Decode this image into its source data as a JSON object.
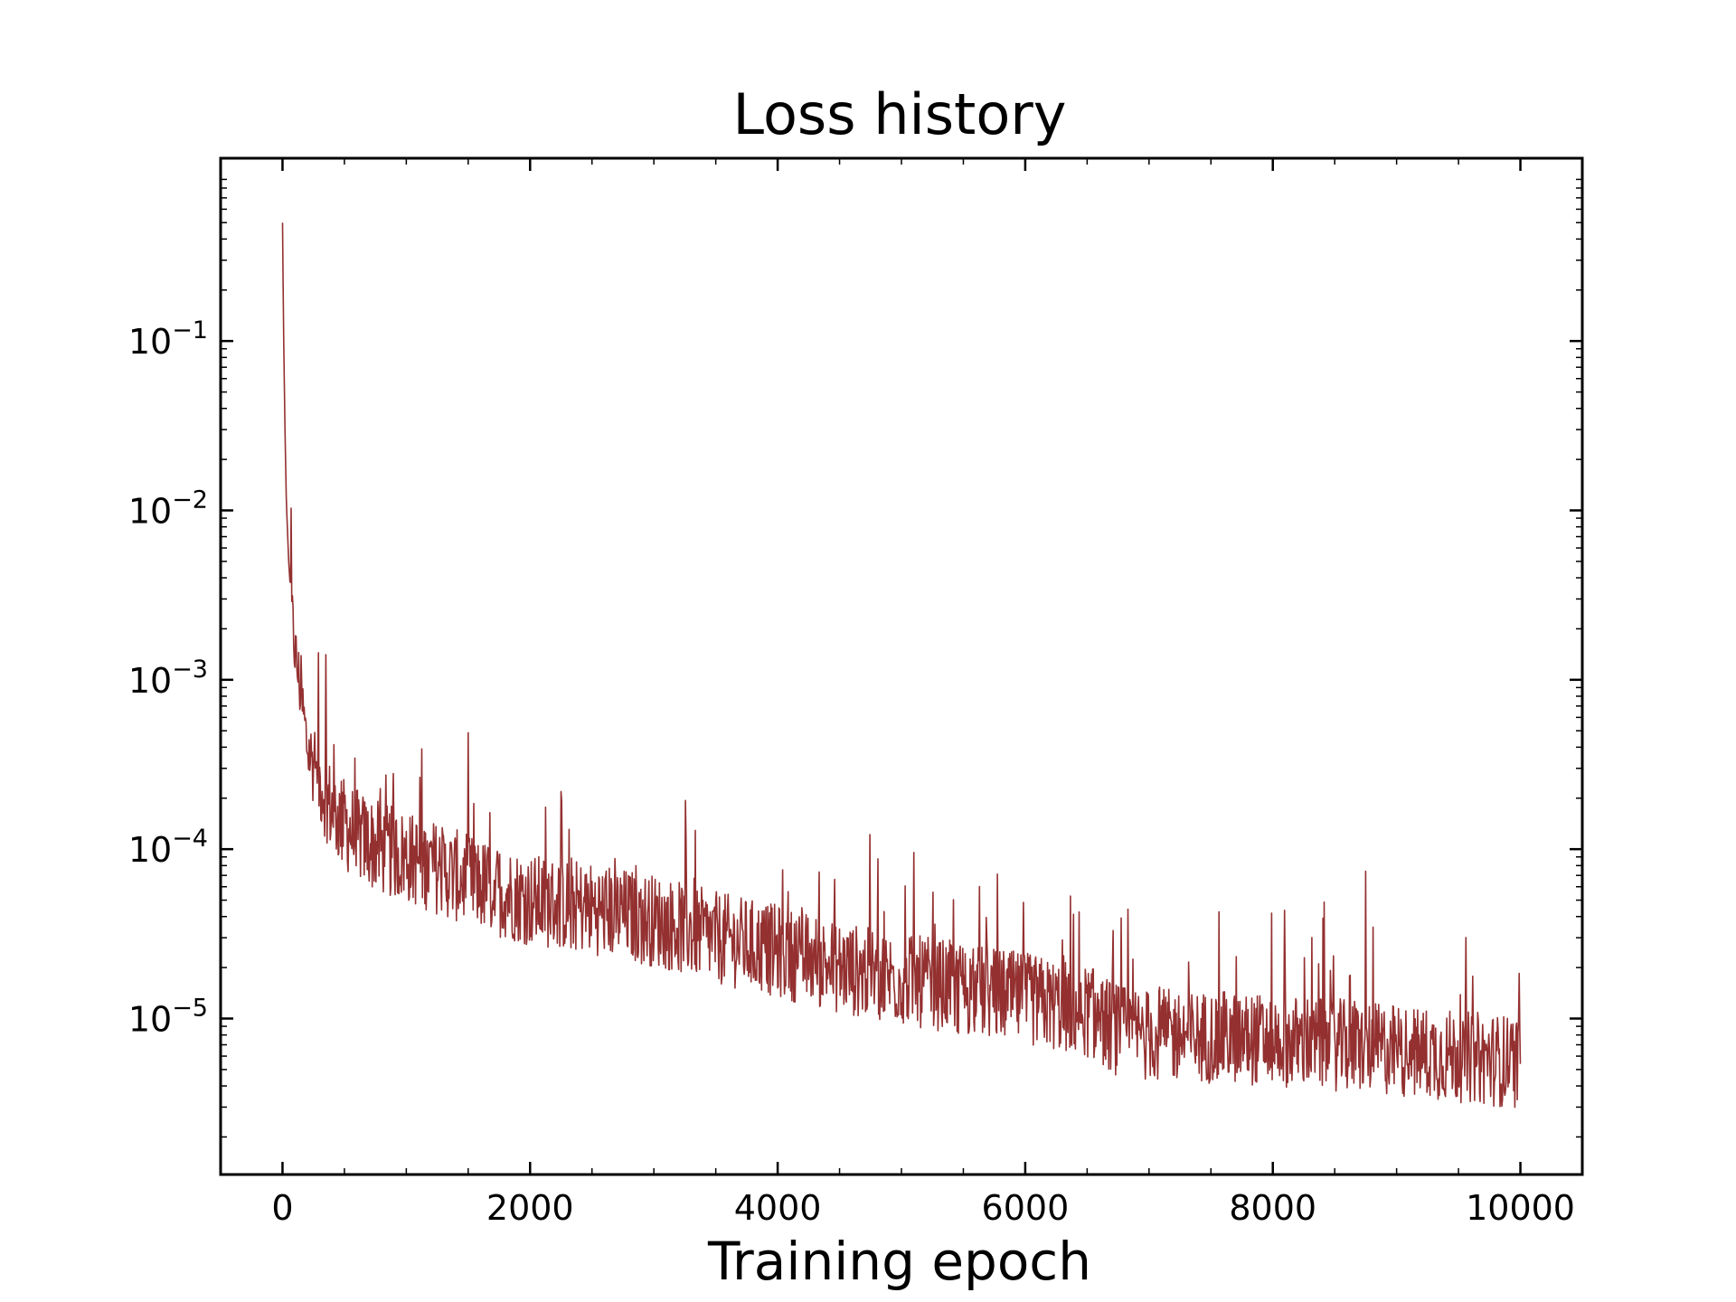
{
  "chart_data": {
    "type": "line",
    "title": "Loss history",
    "xlabel": "Training epoch",
    "ylabel": "",
    "xlim": [
      -500,
      10500
    ],
    "ylim": [
      1.2e-06,
      1.2
    ],
    "y_scale": "log",
    "grid": false,
    "legend": "none",
    "x_ticks": [
      0,
      2000,
      4000,
      6000,
      8000,
      10000
    ],
    "x_tick_labels": [
      "0",
      "2000",
      "4000",
      "6000",
      "8000",
      "10000"
    ],
    "y_ticks": [
      0.1,
      0.01,
      0.001,
      0.0001,
      1e-05
    ],
    "y_tick_labels": [
      {
        "base": "10",
        "exp": "−1"
      },
      {
        "base": "10",
        "exp": "−2"
      },
      {
        "base": "10",
        "exp": "−3"
      },
      {
        "base": "10",
        "exp": "−4"
      },
      {
        "base": "10",
        "exp": "−5"
      }
    ],
    "series": [
      {
        "color": "#943030",
        "x": [
          0,
          10,
          20,
          30,
          50,
          75,
          100,
          150,
          200,
          300,
          400,
          500,
          600,
          800,
          1000,
          1200,
          1500,
          2000,
          2500,
          3000,
          3500,
          4000,
          4500,
          5000,
          5500,
          6000,
          6500,
          6750,
          7000,
          7500,
          8000,
          8500,
          9000,
          9500,
          10000
        ],
        "y": [
          0.5,
          0.1,
          0.03,
          0.012,
          0.005,
          0.0025,
          0.0015,
          0.0008,
          0.0004,
          0.00025,
          0.00017,
          0.00014,
          0.00012,
          0.0001,
          9e-05,
          8e-05,
          6.5e-05,
          5e-05,
          4.5e-05,
          3.8e-05,
          3e-05,
          2.5e-05,
          2e-05,
          1.7e-05,
          1.5e-05,
          1.3e-05,
          1.1e-05,
          8.5e-06,
          8e-06,
          7.8e-06,
          7.5e-06,
          7e-06,
          6.5e-06,
          6e-06,
          5.5e-06
        ]
      }
    ]
  }
}
